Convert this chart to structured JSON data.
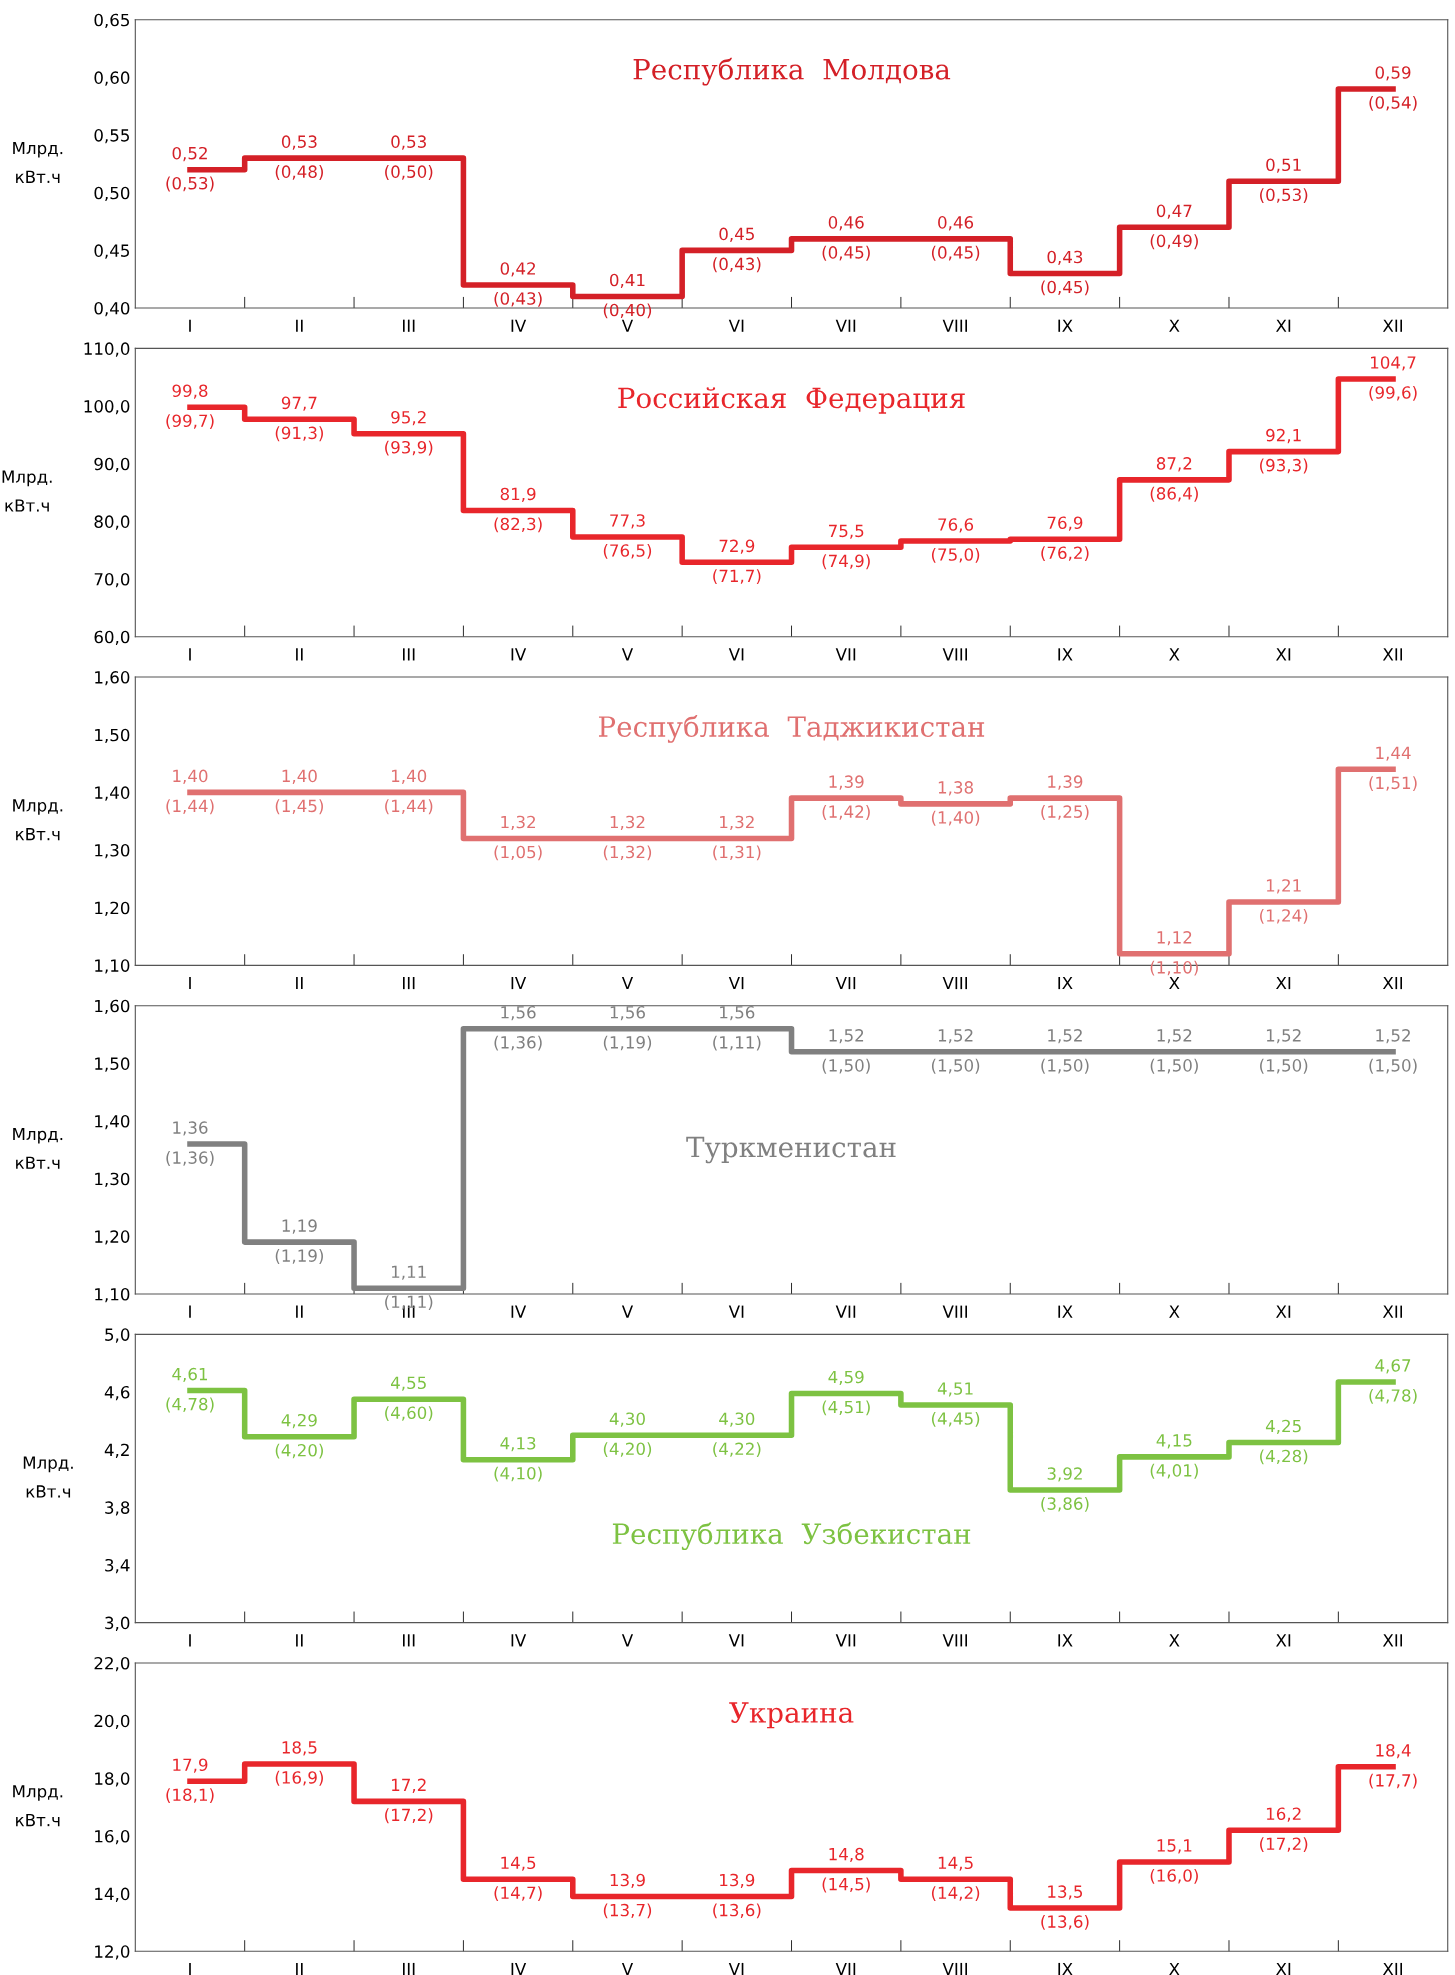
{
  "chart_data": [
    {
      "type": "step",
      "title": "Республика  Молдова",
      "ylabel": "Млрд.\nкВт.ч",
      "categories": [
        "I",
        "II",
        "III",
        "IV",
        "V",
        "VI",
        "VII",
        "VIII",
        "IX",
        "X",
        "XI",
        "XII"
      ],
      "series": [
        {
          "color": "#d42027",
          "values": [
            0.52,
            0.53,
            0.53,
            0.42,
            0.41,
            0.45,
            0.46,
            0.46,
            0.43,
            0.47,
            0.51,
            0.59
          ],
          "value_labels": [
            "0,52\n(0,53)",
            "0,53\n(0,48)",
            "0,53\n(0,50)",
            "0,42\n(0,43)",
            "0,41\n(0,40)",
            "0,45\n(0,43)",
            "0,46\n(0,45)",
            "0,46\n(0,45)",
            "0,43\n(0,45)",
            "0,47\n(0,49)",
            "0,51\n(0,53)",
            "0,59\n(0,54)"
          ]
        }
      ],
      "ylim": [
        0.4,
        0.65
      ],
      "yticks": [
        {
          "value": 0.4,
          "label": "0,40"
        },
        {
          "value": 0.45,
          "label": "0,45"
        },
        {
          "value": 0.5,
          "label": "0,50"
        },
        {
          "value": 0.55,
          "label": "0,55"
        },
        {
          "value": 0.6,
          "label": "0,60"
        },
        {
          "value": 0.65,
          "label": "0,65"
        }
      ],
      "grid": false
    },
    {
      "type": "step",
      "title": "Российская  Федерация",
      "ylabel": "Млрд.\nкВт.ч",
      "categories": [
        "I",
        "II",
        "III",
        "IV",
        "V",
        "VI",
        "VII",
        "VIII",
        "IX",
        "X",
        "XI",
        "XII"
      ],
      "series": [
        {
          "color": "#e8262b",
          "values": [
            99.8,
            97.7,
            95.2,
            81.9,
            77.3,
            72.9,
            75.5,
            76.6,
            76.9,
            87.2,
            92.1,
            104.7
          ],
          "value_labels": [
            "99,8\n(99,7)",
            "97,7\n(91,3)",
            "95,2\n(93,9)",
            "81,9\n(82,3)",
            "77,3\n(76,5)",
            "72,9\n(71,7)",
            "75,5\n(74,9)",
            "76,6\n(75,0)",
            "76,9\n(76,2)",
            "87,2\n(86,4)",
            "92,1\n(93,3)",
            "104,7\n(99,6)"
          ]
        }
      ],
      "ylim": [
        60,
        110
      ],
      "yticks": [
        {
          "value": 60,
          "label": "60,0"
        },
        {
          "value": 70,
          "label": "70,0"
        },
        {
          "value": 80,
          "label": "80,0"
        },
        {
          "value": 90,
          "label": "90,0"
        },
        {
          "value": 100,
          "label": "100,0"
        },
        {
          "value": 110,
          "label": "110,0"
        }
      ],
      "grid": false
    },
    {
      "type": "step",
      "title": "Республика  Таджикистан",
      "ylabel": "Млрд.\nкВт.ч",
      "categories": [
        "I",
        "II",
        "III",
        "IV",
        "V",
        "VI",
        "VII",
        "VIII",
        "IX",
        "X",
        "XI",
        "XII"
      ],
      "series": [
        {
          "color": "#e07070",
          "values": [
            1.4,
            1.4,
            1.4,
            1.32,
            1.32,
            1.32,
            1.39,
            1.38,
            1.39,
            1.12,
            1.21,
            1.44
          ],
          "value_labels": [
            "1,40\n(1,44)",
            "1,40\n(1,45)",
            "1,40\n(1,44)",
            "1,32\n(1,05)",
            "1,32\n(1,32)",
            "1,32\n(1,31)",
            "1,39\n(1,42)",
            "1,38\n(1,40)",
            "1,39\n(1,25)",
            "1,12\n(1,10)",
            "1,21\n(1,24)",
            "1,44\n(1,51)"
          ]
        }
      ],
      "ylim": [
        1.1,
        1.6
      ],
      "yticks": [
        {
          "value": 1.1,
          "label": "1,10"
        },
        {
          "value": 1.2,
          "label": "1,20"
        },
        {
          "value": 1.3,
          "label": "1,30"
        },
        {
          "value": 1.4,
          "label": "1,40"
        },
        {
          "value": 1.5,
          "label": "1,50"
        },
        {
          "value": 1.6,
          "label": "1,60"
        }
      ],
      "grid": false
    },
    {
      "type": "step",
      "title": "Туркменистан",
      "ylabel": "Млрд.\nкВт.ч",
      "categories": [
        "I",
        "II",
        "III",
        "IV",
        "V",
        "VI",
        "VII",
        "VIII",
        "IX",
        "X",
        "XI",
        "XII"
      ],
      "series": [
        {
          "color": "#808080",
          "values": [
            1.36,
            1.19,
            1.11,
            1.56,
            1.56,
            1.56,
            1.52,
            1.52,
            1.52,
            1.52,
            1.52,
            1.52
          ],
          "value_labels": [
            "1,36\n(1,36)",
            "1,19\n(1,19)",
            "1,11\n(1,11)",
            "1,56\n(1,36)",
            "1,56\n(1,19)",
            "1,56\n(1,11)",
            "1,52\n(1,50)",
            "1,52\n(1,50)",
            "1,52\n(1,50)",
            "1,52\n(1,50)",
            "1,52\n(1,50)",
            "1,52\n(1,50)"
          ]
        }
      ],
      "ylim": [
        1.1,
        1.6
      ],
      "yticks": [
        {
          "value": 1.1,
          "label": "1,10"
        },
        {
          "value": 1.2,
          "label": "1,20"
        },
        {
          "value": 1.3,
          "label": "1,30"
        },
        {
          "value": 1.4,
          "label": "1,40"
        },
        {
          "value": 1.5,
          "label": "1,50"
        },
        {
          "value": 1.6,
          "label": "1,60"
        }
      ],
      "grid": false
    },
    {
      "type": "step",
      "title": "Республика  Узбекистан",
      "ylabel": "Млрд.\nкВт.ч",
      "categories": [
        "I",
        "II",
        "III",
        "IV",
        "V",
        "VI",
        "VII",
        "VIII",
        "IX",
        "X",
        "XI",
        "XII"
      ],
      "series": [
        {
          "color": "#7dc242",
          "values": [
            4.61,
            4.29,
            4.55,
            4.13,
            4.3,
            4.3,
            4.59,
            4.51,
            3.92,
            4.15,
            4.25,
            4.67
          ],
          "value_labels": [
            "4,61\n(4,78)",
            "4,29\n(4,20)",
            "4,55\n(4,60)",
            "4,13\n(4,10)",
            "4,30\n(4,20)",
            "4,30\n(4,22)",
            "4,59\n(4,51)",
            "4,51\n(4,45)",
            "3,92\n(3,86)",
            "4,15\n(4,01)",
            "4,25\n(4,28)",
            "4,67\n(4,78)"
          ]
        }
      ],
      "ylim": [
        3.0,
        5.0
      ],
      "yticks": [
        {
          "value": 3.0,
          "label": "3,0"
        },
        {
          "value": 3.4,
          "label": "3,4"
        },
        {
          "value": 3.8,
          "label": "3,8"
        },
        {
          "value": 4.2,
          "label": "4,2"
        },
        {
          "value": 4.6,
          "label": "4,6"
        },
        {
          "value": 5.0,
          "label": "5,0"
        }
      ],
      "grid": false
    },
    {
      "type": "step",
      "title": "Украина",
      "ylabel": "Млрд.\nкВт.ч",
      "categories": [
        "I",
        "II",
        "III",
        "IV",
        "V",
        "VI",
        "VII",
        "VIII",
        "IX",
        "X",
        "XI",
        "XII"
      ],
      "series": [
        {
          "color": "#e8262b",
          "values": [
            17.9,
            18.5,
            17.2,
            14.5,
            13.9,
            13.9,
            14.8,
            14.5,
            13.5,
            15.1,
            16.2,
            18.4
          ],
          "value_labels": [
            "17,9\n(18,1)",
            "18,5\n(16,9)",
            "17,2\n(17,2)",
            "14,5\n(14,7)",
            "13,9\n(13,7)",
            "13,9\n(13,6)",
            "14,8\n(14,5)",
            "14,5\n(14,2)",
            "13,5\n(13,6)",
            "15,1\n(16,0)",
            "16,2\n(17,2)",
            "18,4\n(17,7)"
          ]
        }
      ],
      "ylim": [
        12,
        22
      ],
      "yticks": [
        {
          "value": 12,
          "label": "12,0"
        },
        {
          "value": 14,
          "label": "14,0"
        },
        {
          "value": 16,
          "label": "16,0"
        },
        {
          "value": 18,
          "label": "18,0"
        },
        {
          "value": 20,
          "label": "20,0"
        },
        {
          "value": 22,
          "label": "22,0"
        }
      ],
      "grid": false
    }
  ]
}
